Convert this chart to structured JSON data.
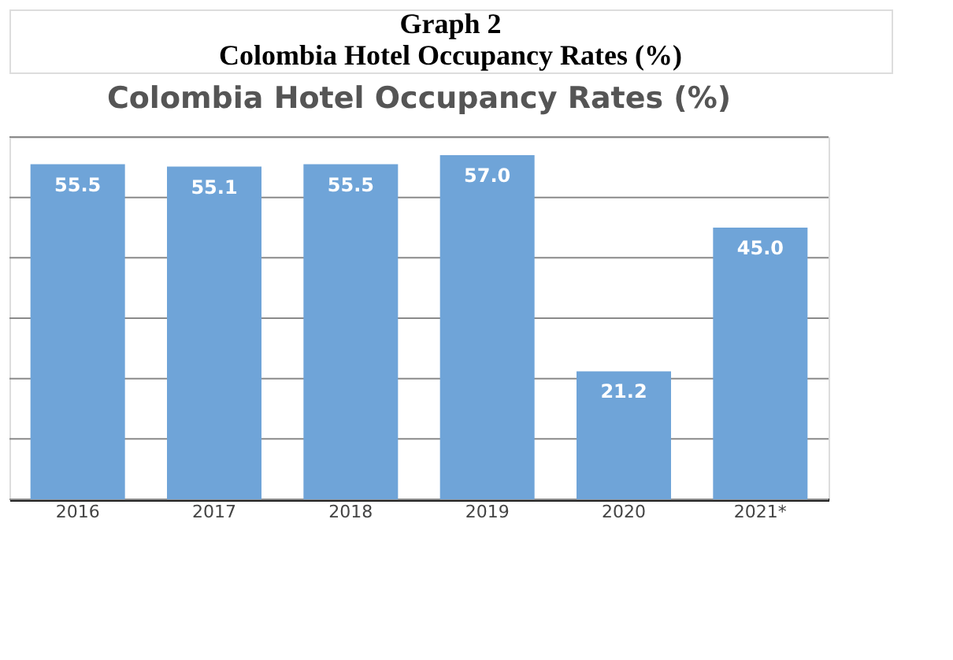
{
  "chart_data": {
    "type": "bar",
    "title": "Colombia Hotel Occupancy Rates (%)",
    "annotations": [
      "Graph 2",
      "Colombia Hotel Occupancy Rates (%)"
    ],
    "categories": [
      "2016",
      "2017",
      "2018",
      "2019",
      "2020",
      "2021*"
    ],
    "values": [
      55.5,
      55.1,
      55.5,
      57.0,
      21.2,
      45.0
    ],
    "value_labels": [
      "55.5",
      "55.1",
      "55.5",
      "57.0",
      "21.2",
      "45.0"
    ],
    "color": "#6fa4d8",
    "ylim": [
      0,
      60
    ],
    "yticks": [
      {
        "value": 0,
        "label": null
      },
      {
        "value": 10,
        "label": null
      },
      {
        "value": 20,
        "label": null
      },
      {
        "value": 30,
        "label": null
      },
      {
        "value": 40,
        "label": null
      },
      {
        "value": 50,
        "label": null
      },
      {
        "value": 60,
        "label": null
      }
    ],
    "tick_labels": "x",
    "grid": "y",
    "data_labels": true
  }
}
